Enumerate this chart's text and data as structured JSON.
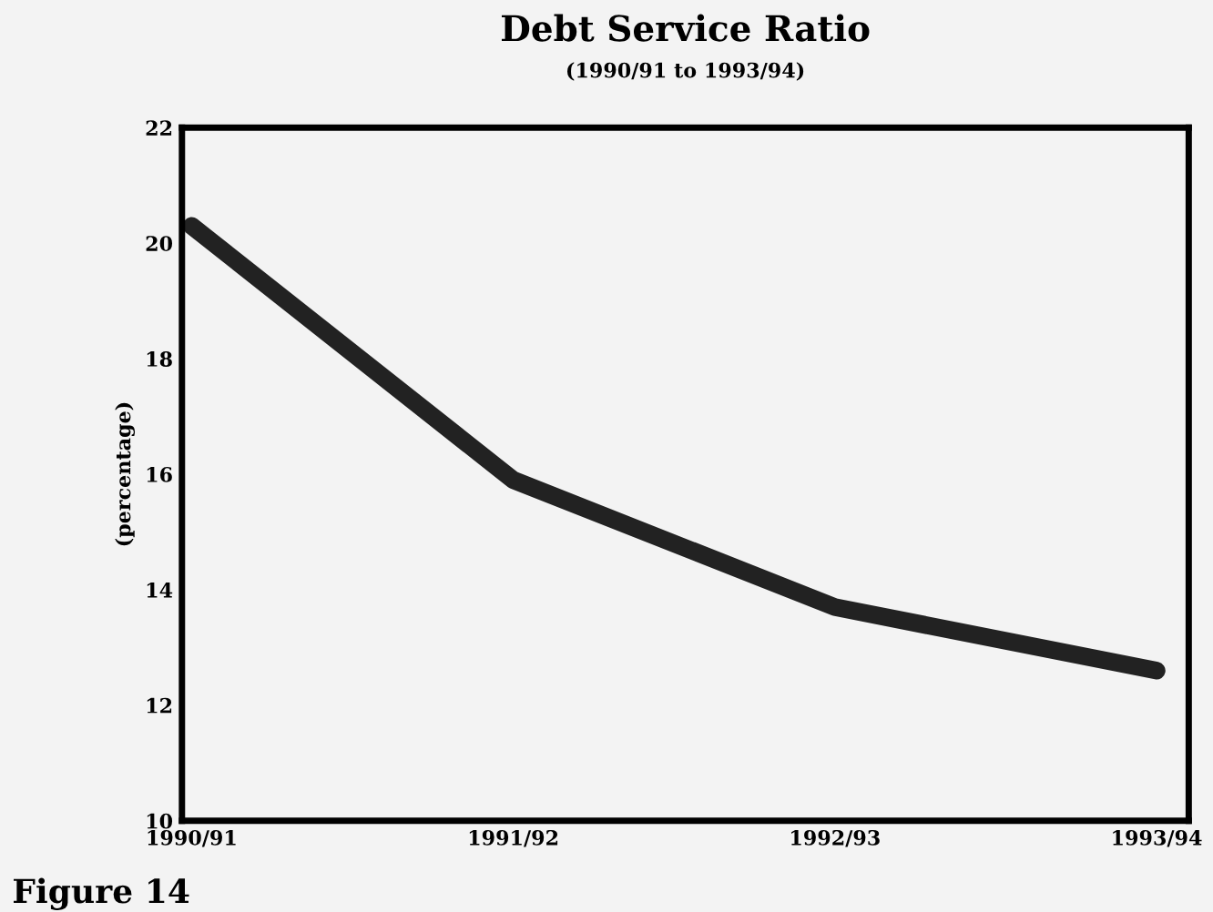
{
  "chart_data": {
    "type": "line",
    "title": "Debt Service Ratio",
    "subtitle": "(1990/91 to 1993/94)",
    "ylabel": "(percentage)",
    "categories": [
      "1990/91",
      "1991/92",
      "1992/93",
      "1993/94"
    ],
    "series": [
      {
        "color": "#222222",
        "values": [
          20.3,
          15.9,
          13.7,
          12.6
        ]
      }
    ],
    "ylim": [
      10,
      22
    ],
    "yticks": [
      10,
      12,
      14,
      16,
      18,
      20,
      22
    ],
    "grid": false,
    "legend": false,
    "marker": "none",
    "line_style": "solid",
    "annotations": [
      "Figure 14"
    ]
  }
}
